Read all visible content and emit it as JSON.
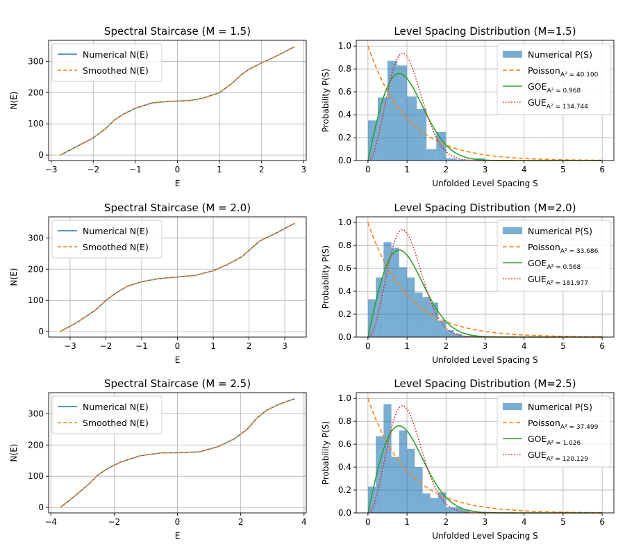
{
  "colors": {
    "numerical": "#1f77b4",
    "smoothed": "#ff7f0e",
    "hist": "#1f77b4",
    "poisson": "#ff7f0e",
    "goe": "#2ca02c",
    "gue": "#d62728",
    "grid": "#b0b0b0"
  },
  "chart_data": [
    {
      "type": "line",
      "title": "Spectral Staircase (M = 1.5)",
      "xlabel": "E",
      "ylabel": "N(E)",
      "xlim": [
        -3.06,
        3.06
      ],
      "ylim": [
        -17.5,
        367.5
      ],
      "xticks": [
        -3,
        -2,
        -1,
        0,
        1,
        2,
        3
      ],
      "yticks": [
        0,
        100,
        200,
        300
      ],
      "grid": true,
      "legend": "top-left",
      "legend_entries": [
        "Numerical N(E)",
        "Smoothed N(E)"
      ],
      "series": [
        {
          "name": "Numerical N(E)",
          "x": [
            -2.78,
            -2.4,
            -2.0,
            -1.7,
            -1.5,
            -1.3,
            -1.0,
            -0.6,
            -0.3,
            0.0,
            0.3,
            0.6,
            1.0,
            1.3,
            1.5,
            1.7,
            2.0,
            2.4,
            2.78
          ],
          "y": [
            0,
            27,
            55,
            85,
            112,
            130,
            150,
            167,
            171,
            173,
            175,
            182,
            200,
            230,
            255,
            275,
            295,
            320,
            347
          ]
        },
        {
          "name": "Smoothed N(E)",
          "x": [
            -2.78,
            -2.4,
            -2.0,
            -1.7,
            -1.5,
            -1.3,
            -1.0,
            -0.6,
            -0.3,
            0.0,
            0.3,
            0.6,
            1.0,
            1.3,
            1.5,
            1.7,
            2.0,
            2.4,
            2.78
          ],
          "y": [
            0,
            27,
            55,
            85,
            112,
            130,
            150,
            167,
            171,
            173,
            175,
            182,
            200,
            230,
            255,
            275,
            295,
            320,
            347
          ]
        }
      ]
    },
    {
      "type": "bar",
      "title": "Level Spacing Distribution (M=1.5)",
      "xlabel": "Unfolded Level Spacing S",
      "ylabel": "Probability P(S)",
      "xlim": [
        -0.3,
        6.3
      ],
      "ylim": [
        0,
        1.05
      ],
      "xticks": [
        0,
        1,
        2,
        3,
        4,
        5,
        6
      ],
      "yticks": [
        0.0,
        0.2,
        0.4,
        0.6,
        0.8,
        1.0
      ],
      "grid": true,
      "legend": "top-right",
      "legend_entries": [
        {
          "label": "Numerical P(S)",
          "sub": ""
        },
        {
          "label": "Poisson",
          "sub": "A² = 40.100"
        },
        {
          "label": "GOE",
          "sub": "A² = 0.968"
        },
        {
          "label": "GUE",
          "sub": "A² = 134.744"
        }
      ],
      "hist_bin_width": 0.25,
      "hist_start": 0.125,
      "hist_values": [
        0.35,
        0.55,
        0.87,
        0.83,
        0.56,
        0.45,
        0.1,
        0.25,
        0.02,
        0.01,
        0.0,
        0.02
      ]
    },
    {
      "type": "line",
      "title": "Spectral Staircase (M = 2.0)",
      "xlabel": "E",
      "ylabel": "N(E)",
      "xlim": [
        -3.6,
        3.6
      ],
      "ylim": [
        -17.5,
        367.5
      ],
      "xticks": [
        -3,
        -2,
        -1,
        0,
        1,
        2,
        3
      ],
      "yticks": [
        0,
        100,
        200,
        300
      ],
      "grid": true,
      "legend": "top-left",
      "legend_entries": [
        "Numerical N(E)",
        "Smoothed N(E)"
      ],
      "series": [
        {
          "name": "Numerical N(E)",
          "x": [
            -3.28,
            -2.8,
            -2.3,
            -2.0,
            -1.7,
            -1.4,
            -1.0,
            -0.5,
            0.0,
            0.5,
            1.0,
            1.4,
            1.8,
            2.0,
            2.3,
            2.8,
            3.28
          ],
          "y": [
            0,
            30,
            68,
            100,
            125,
            145,
            160,
            170,
            175,
            180,
            195,
            215,
            240,
            260,
            290,
            318,
            347
          ]
        },
        {
          "name": "Smoothed N(E)",
          "x": [
            -3.28,
            -2.8,
            -2.3,
            -2.0,
            -1.7,
            -1.4,
            -1.0,
            -0.5,
            0.0,
            0.5,
            1.0,
            1.4,
            1.8,
            2.0,
            2.3,
            2.8,
            3.28
          ],
          "y": [
            0,
            30,
            68,
            100,
            125,
            145,
            160,
            170,
            175,
            180,
            195,
            215,
            240,
            260,
            290,
            318,
            347
          ]
        }
      ]
    },
    {
      "type": "bar",
      "title": "Level Spacing Distribution (M=2.0)",
      "xlabel": "Unfolded Level Spacing S",
      "ylabel": "Probability P(S)",
      "xlim": [
        -0.3,
        6.3
      ],
      "ylim": [
        0,
        1.05
      ],
      "xticks": [
        0,
        1,
        2,
        3,
        4,
        5,
        6
      ],
      "yticks": [
        0.0,
        0.2,
        0.4,
        0.6,
        0.8,
        1.0
      ],
      "grid": true,
      "legend": "top-right",
      "legend_entries": [
        {
          "label": "Numerical P(S)",
          "sub": ""
        },
        {
          "label": "Poisson",
          "sub": "A² = 33.686"
        },
        {
          "label": "GOE",
          "sub": "A² = 0.568"
        },
        {
          "label": "GUE",
          "sub": "A² = 181.977"
        }
      ],
      "hist_bin_width": 0.2,
      "hist_start": 0.1,
      "hist_values": [
        0.33,
        0.52,
        0.83,
        0.78,
        0.61,
        0.52,
        0.39,
        0.35,
        0.3,
        0.14,
        0.06,
        0.03,
        0.01,
        0.01
      ]
    },
    {
      "type": "line",
      "title": "Spectral Staircase (M = 2.5)",
      "xlabel": "E",
      "ylabel": "N(E)",
      "xlim": [
        -4.07,
        4.07
      ],
      "ylim": [
        -17.5,
        367.5
      ],
      "xticks": [
        -4,
        -2,
        0,
        2,
        4
      ],
      "yticks": [
        0,
        100,
        200,
        300
      ],
      "grid": true,
      "legend": "top-left",
      "legend_entries": [
        "Numerical N(E)",
        "Smoothed N(E)"
      ],
      "series": [
        {
          "name": "Numerical N(E)",
          "x": [
            -3.7,
            -3.2,
            -2.8,
            -2.5,
            -2.2,
            -1.8,
            -1.2,
            -0.5,
            0.0,
            0.7,
            1.3,
            1.8,
            2.2,
            2.5,
            2.8,
            3.2,
            3.7
          ],
          "y": [
            0,
            40,
            75,
            105,
            125,
            145,
            165,
            175,
            175,
            178,
            195,
            220,
            250,
            285,
            310,
            330,
            348
          ]
        },
        {
          "name": "Smoothed N(E)",
          "x": [
            -3.7,
            -3.2,
            -2.8,
            -2.5,
            -2.2,
            -1.8,
            -1.2,
            -0.5,
            0.0,
            0.7,
            1.3,
            1.8,
            2.2,
            2.5,
            2.8,
            3.2,
            3.7
          ],
          "y": [
            0,
            40,
            75,
            105,
            125,
            145,
            165,
            175,
            175,
            178,
            195,
            220,
            250,
            285,
            310,
            330,
            348
          ]
        }
      ]
    },
    {
      "type": "bar",
      "title": "Level Spacing Distribution (M=2.5)",
      "xlabel": "Unfolded Level Spacing S",
      "ylabel": "Probability P(S)",
      "xlim": [
        -0.3,
        6.3
      ],
      "ylim": [
        0,
        1.05
      ],
      "xticks": [
        0,
        1,
        2,
        3,
        4,
        5,
        6
      ],
      "yticks": [
        0.0,
        0.2,
        0.4,
        0.6,
        0.8,
        1.0
      ],
      "grid": true,
      "legend": "top-right",
      "legend_entries": [
        {
          "label": "Numerical P(S)",
          "sub": ""
        },
        {
          "label": "Poisson",
          "sub": "A² = 37.499"
        },
        {
          "label": "GOE",
          "sub": "A² = 1.026"
        },
        {
          "label": "GUE",
          "sub": "A² = 120.129"
        }
      ],
      "hist_bin_width": 0.2,
      "hist_start": 0.1,
      "hist_values": [
        0.23,
        0.67,
        0.95,
        0.49,
        0.72,
        0.56,
        0.4,
        0.17,
        0.13,
        0.18,
        0.05,
        0.05,
        0.03
      ]
    }
  ]
}
